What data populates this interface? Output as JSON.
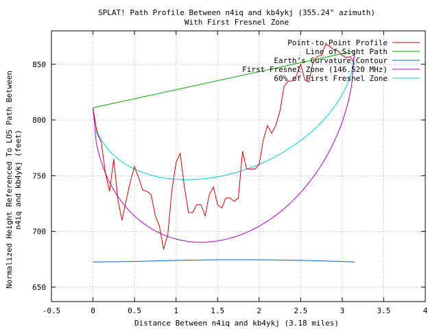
{
  "chart_data": {
    "type": "line",
    "title": "SPLAT! Path Profile Between n4iq and kb4ykj (355.24° azimuth)",
    "subtitle": "With First Fresnel Zone",
    "xlabel": "Distance Between n4iq and kb4ykj (3.18 miles)",
    "ylabel_line1": "Normalized Height Referenced To LOS Path Between",
    "ylabel_line2": "n4iq and kb4ykj (feet)",
    "xlim": [
      -0.5,
      4
    ],
    "ylim": [
      637,
      880
    ],
    "xticks": [
      -0.5,
      0,
      0.5,
      1,
      1.5,
      2,
      2.5,
      3,
      3.5,
      4
    ],
    "xtick_labels": [
      "-0.5",
      "0",
      "0.5",
      "1",
      "1.5",
      "2",
      "2.5",
      "3",
      "3.5",
      "4"
    ],
    "yticks": [
      650,
      700,
      750,
      800,
      850
    ],
    "ytick_labels": [
      "650",
      "700",
      "750",
      "800",
      "850"
    ],
    "grid": true,
    "legend_position": "top-right",
    "series": [
      {
        "name": "Point-to-Point Profile",
        "color": "#cc0000",
        "x": [
          0,
          0.05,
          0.1,
          0.15,
          0.2,
          0.25,
          0.3,
          0.35,
          0.4,
          0.45,
          0.5,
          0.55,
          0.6,
          0.65,
          0.7,
          0.75,
          0.8,
          0.85,
          0.9,
          0.95,
          1.0,
          1.05,
          1.1,
          1.15,
          1.2,
          1.25,
          1.3,
          1.35,
          1.4,
          1.45,
          1.5,
          1.55,
          1.6,
          1.65,
          1.7,
          1.75,
          1.8,
          1.85,
          1.9,
          1.95,
          2.0,
          2.05,
          2.1,
          2.15,
          2.2,
          2.25,
          2.3,
          2.35,
          2.4,
          2.45,
          2.5,
          2.55,
          2.6,
          2.65,
          2.7,
          2.75,
          2.8,
          2.85,
          2.9,
          2.95,
          3.0,
          3.05,
          3.1,
          3.15
        ],
        "y": [
          810,
          788,
          780,
          752,
          736,
          765,
          728,
          710,
          728,
          745,
          758,
          748,
          737,
          736,
          733,
          714,
          705,
          684,
          697,
          737,
          762,
          770,
          740,
          717,
          717,
          724,
          724,
          714,
          733,
          740,
          724,
          721,
          730,
          730,
          727,
          730,
          772,
          756,
          756,
          756,
          760,
          782,
          795,
          788,
          795,
          808,
          830,
          835,
          835,
          840,
          850,
          836,
          834,
          852,
          857,
          858,
          868,
          866,
          863,
          862,
          858,
          856,
          857,
          850
        ]
      },
      {
        "name": "Line of Sight Path",
        "color": "#00aa00",
        "x": [
          0,
          3.15
        ],
        "y": [
          811,
          862
        ]
      },
      {
        "name": "Earth’s Curvature Contour",
        "color": "#0066cc",
        "x": [
          0,
          0.5,
          1.0,
          1.5,
          2.0,
          2.5,
          3.0,
          3.15
        ],
        "y": [
          672.5,
          673,
          674,
          674.5,
          674.5,
          674,
          673,
          672.5
        ]
      },
      {
        "name": "First Fresnel Zone (146.520 MHz)",
        "color": "#aa00cc",
        "fresnel_fraction": 1.0
      },
      {
        "name": "60% of First Fresnel Zone",
        "color": "#00cccc",
        "fresnel_fraction": 0.6
      }
    ]
  }
}
